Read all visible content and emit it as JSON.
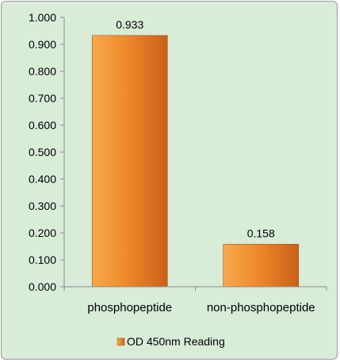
{
  "chart_data": {
    "type": "bar",
    "categories": [
      "phosphopeptide",
      "non-phosphopeptide"
    ],
    "series": [
      {
        "name": "OD 450nm Reading",
        "values": [
          0.933,
          0.158
        ]
      }
    ],
    "data_labels": [
      "0.933",
      "0.158"
    ],
    "yticks": [
      "0.000",
      "0.100",
      "0.200",
      "0.300",
      "0.400",
      "0.500",
      "0.600",
      "0.700",
      "0.800",
      "0.900",
      "1.000"
    ],
    "ylim": [
      0,
      1.0
    ],
    "title": "",
    "xlabel": "",
    "ylabel": "",
    "grid": false,
    "legend_position": "bottom",
    "colors": {
      "bar_light": "#f6a94e",
      "bar_mid": "#ee8a2a",
      "bar_dark": "#c9601a",
      "background": "#d8ecd8",
      "axis": "#8c8c8c"
    }
  }
}
